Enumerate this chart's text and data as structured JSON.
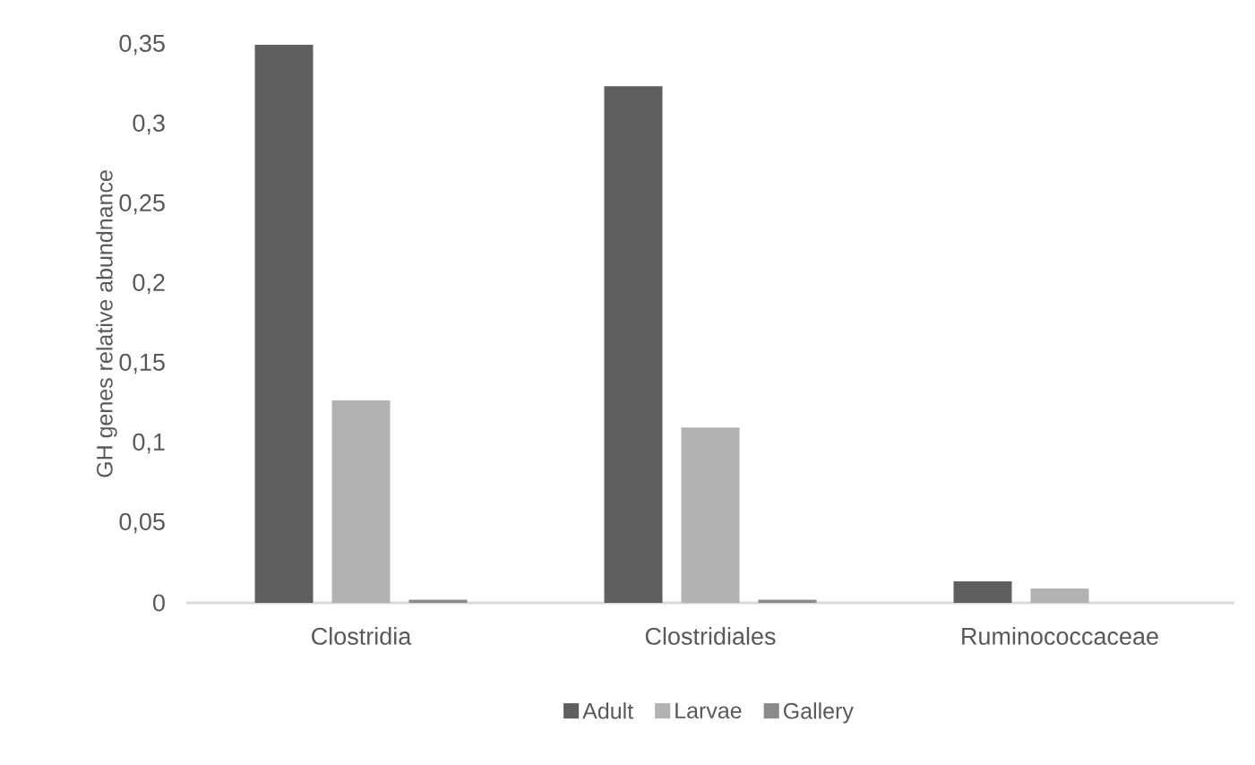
{
  "chart_data": {
    "type": "bar",
    "ylabel": "GH genes relative abundnance",
    "categories": [
      "Clostridia",
      "Clostridiales",
      "Ruminococcaceae"
    ],
    "series": [
      {
        "name": "Adult",
        "color": "#5f5f5f",
        "values": [
          0.35,
          0.324,
          0.0135
        ]
      },
      {
        "name": "Larvae",
        "color": "#b2b2b2",
        "values": [
          0.127,
          0.11,
          0.009
        ]
      },
      {
        "name": "Gallery",
        "color": "#8a8a8a",
        "values": [
          0.002,
          0.002,
          0
        ]
      }
    ],
    "ylim": [
      0,
      0.35
    ],
    "yticks": [
      {
        "value": 0,
        "label": "0"
      },
      {
        "value": 0.05,
        "label": "0,05"
      },
      {
        "value": 0.1,
        "label": "0,1"
      },
      {
        "value": 0.15,
        "label": "0,15"
      },
      {
        "value": 0.2,
        "label": "0,2"
      },
      {
        "value": 0.25,
        "label": "0,25"
      },
      {
        "value": 0.3,
        "label": "0,3"
      },
      {
        "value": 0.35,
        "label": "0,35"
      }
    ],
    "grid": false,
    "legend": "bottom"
  }
}
